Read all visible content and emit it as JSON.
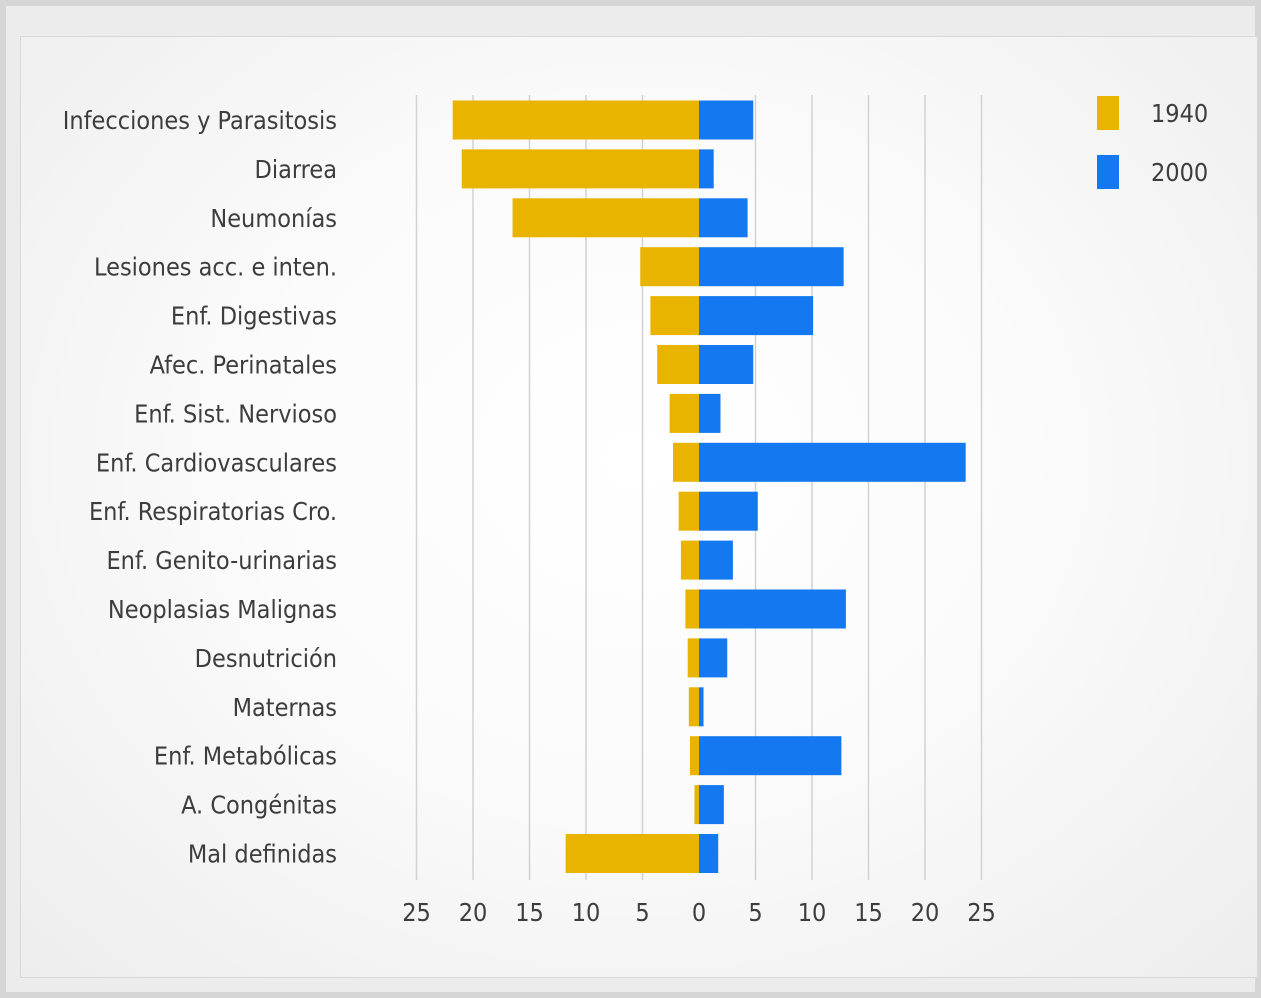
{
  "chart_data": {
    "type": "bar",
    "orientation": "horizontal-diverging",
    "categories": [
      "Infecciones y Parasitosis",
      "Diarrea",
      "Neumonías",
      "Lesiones acc. e inten.",
      "Enf. Digestivas",
      "Afec. Perinatales",
      "Enf. Sist. Nervioso",
      "Enf.  Cardiovasculares",
      "Enf. Respiratorias Cro.",
      "Enf. Genito-urinarias",
      "Neoplasias Malignas",
      "Desnutrición",
      "Maternas",
      "Enf. Metabólicas",
      "A. Congénitas",
      "Mal definidas"
    ],
    "series": [
      {
        "name": "1940",
        "color": "#e8b400",
        "side": "left",
        "values": [
          21.8,
          21.0,
          16.5,
          5.2,
          4.3,
          3.7,
          2.6,
          2.3,
          1.8,
          1.6,
          1.2,
          1.0,
          0.9,
          0.8,
          0.4,
          11.8
        ]
      },
      {
        "name": "2000",
        "color": "#1478f0",
        "side": "right",
        "values": [
          4.8,
          1.3,
          4.3,
          12.8,
          10.1,
          4.8,
          1.9,
          23.6,
          5.2,
          3.0,
          13.0,
          2.5,
          0.4,
          12.6,
          2.2,
          1.7
        ]
      }
    ],
    "xticks": [
      "25",
      "20",
      "15",
      "10",
      "5",
      "0",
      "5",
      "10",
      "15",
      "20",
      "25"
    ],
    "xlim": [
      -25,
      25
    ],
    "grid": true,
    "legend_position": "top-right",
    "title": "",
    "xlabel": "",
    "ylabel": ""
  }
}
